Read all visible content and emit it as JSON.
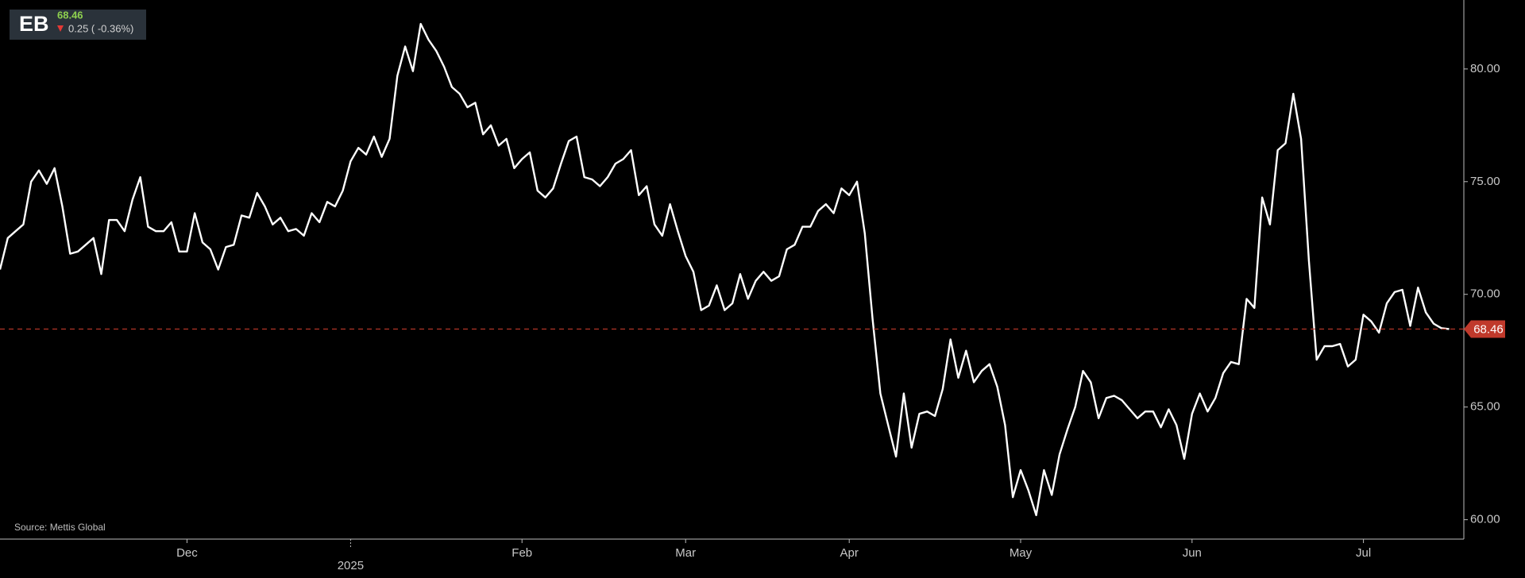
{
  "header": {
    "ticker": "EB",
    "change": "0.25 ( -0.36%)"
  },
  "source": "Source: Mettis Global",
  "chart_data": {
    "type": "line",
    "series": [
      {
        "color": "#ffffff",
        "values": [
          71.1,
          72.5,
          72.8,
          73.1,
          75.0,
          75.5,
          74.9,
          75.6,
          73.9,
          71.8,
          71.9,
          72.2,
          72.5,
          70.9,
          73.3,
          73.3,
          72.8,
          74.2,
          75.2,
          73.0,
          72.8,
          72.8,
          73.2,
          71.9,
          71.9,
          73.6,
          72.3,
          72.0,
          71.1,
          72.1,
          72.2,
          73.5,
          73.4,
          74.5,
          73.9,
          73.1,
          73.4,
          72.8,
          72.9,
          72.6,
          73.6,
          73.2,
          74.1,
          73.9,
          74.6,
          75.9,
          76.5,
          76.2,
          77.0,
          76.1,
          76.9,
          79.7,
          81.0,
          79.9,
          82.0,
          81.3,
          80.8,
          80.1,
          79.2,
          78.9,
          78.3,
          78.5,
          77.1,
          77.5,
          76.6,
          76.9,
          75.6,
          76.0,
          76.3,
          74.6,
          74.3,
          74.7,
          75.8,
          76.8,
          77.0,
          75.2,
          75.1,
          74.8,
          75.2,
          75.8,
          76.0,
          76.4,
          74.4,
          74.8,
          73.1,
          72.6,
          74.0,
          72.8,
          71.7,
          71.0,
          69.3,
          69.5,
          70.4,
          69.3,
          69.6,
          70.9,
          69.8,
          70.6,
          71.0,
          70.6,
          70.8,
          72.0,
          72.2,
          73.0,
          73.0,
          73.7,
          74.0,
          73.6,
          74.7,
          74.4,
          75.0,
          72.7,
          68.9,
          65.6,
          64.2,
          62.8,
          65.6,
          63.2,
          64.7,
          64.8,
          64.6,
          65.8,
          68.0,
          66.3,
          67.5,
          66.1,
          66.6,
          66.9,
          65.9,
          64.2,
          61.0,
          62.2,
          61.3,
          60.2,
          62.2,
          61.1,
          62.9,
          64.0,
          65.0,
          66.6,
          66.1,
          64.5,
          65.4,
          65.5,
          65.3,
          64.9,
          64.5,
          64.8,
          64.8,
          64.1,
          64.9,
          64.2,
          62.7,
          64.7,
          65.6,
          64.8,
          65.4,
          66.5,
          67.0,
          66.9,
          69.8,
          69.4,
          74.3,
          73.1,
          76.4,
          76.7,
          78.9,
          76.9,
          71.5,
          67.1,
          67.7,
          67.7,
          67.8,
          66.8,
          67.1,
          69.1,
          68.8,
          68.3,
          69.6,
          70.1,
          70.2,
          68.6,
          70.3,
          69.2,
          68.7,
          68.5,
          68.46
        ]
      }
    ],
    "xlim": [
      0,
      186
    ],
    "xticks": [
      {
        "value": 24,
        "label": "Dec"
      },
      {
        "value": 45,
        "label": "2025"
      },
      {
        "value": 67,
        "label": "Feb"
      },
      {
        "value": 88,
        "label": "Mar"
      },
      {
        "value": 109,
        "label": "Apr"
      },
      {
        "value": 131,
        "label": "May"
      },
      {
        "value": 153,
        "label": "Jun"
      },
      {
        "value": 175,
        "label": "Jul"
      }
    ],
    "ylim": [
      59.14,
      83.06
    ],
    "yticks": [
      {
        "value": 60,
        "label": "60.00"
      },
      {
        "value": 65,
        "label": "65.00"
      },
      {
        "value": 70,
        "label": "70.00"
      },
      {
        "value": 75,
        "label": "75.00"
      },
      {
        "value": 80,
        "label": "80.00"
      }
    ],
    "price_line_color": "#c0392b"
  }
}
